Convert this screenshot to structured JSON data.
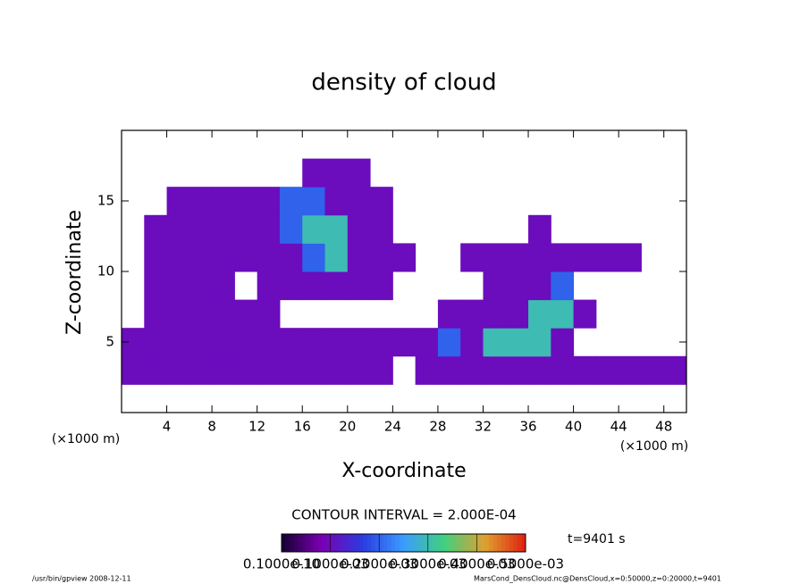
{
  "chart_data": {
    "type": "contour",
    "title": "density of cloud",
    "xlabel": "X-coordinate",
    "ylabel": "Z-coordinate",
    "x_unit": "(×1000 m)",
    "x_unit_right": "(×1000 m)",
    "contour_note": "CONTOUR INTERVAL = 2.000E-04",
    "time_label": "t=9401 s",
    "footer_left": "/usr/bin/gpview  2008-12-11",
    "footer_right": "MarsCond_DensCloud.nc@DensCloud,x=0:50000,z=0:20000,t=9401",
    "xlim": [
      0,
      50
    ],
    "ylim": [
      0,
      20
    ],
    "xticks": [
      4,
      8,
      12,
      16,
      20,
      24,
      28,
      32,
      36,
      40,
      44,
      48
    ],
    "yticks": [
      5,
      10,
      15
    ],
    "x": [
      1,
      3,
      5,
      7,
      9,
      11,
      13,
      15,
      17,
      19,
      21,
      23,
      25,
      27,
      29,
      31,
      33,
      35,
      37,
      39,
      41,
      43,
      45,
      47,
      49
    ],
    "y": [
      3,
      5,
      7,
      9,
      11,
      13,
      15,
      17
    ],
    "values": [
      [
        0.0001,
        0.0001,
        0.0001,
        0.0001,
        0.0001,
        0.0001,
        0.0001,
        0.0001,
        0.0001,
        0.0001,
        0.0001,
        0.0001,
        0,
        0.0001,
        0.0001,
        0.0001,
        0.0001,
        0.0001,
        0.0001,
        0.0001,
        0.0001,
        0.0001,
        0.0001,
        0.0001,
        0.0001
      ],
      [
        0.0001,
        0.0001,
        0.0001,
        0.0001,
        0.0001,
        0.0001,
        0.0001,
        0.0001,
        0.0001,
        0.0001,
        0.0001,
        0.0001,
        0.0001,
        0.0001,
        0.0002,
        0.0001,
        0.0003,
        0.0003,
        0.0003,
        0.0001,
        0,
        0,
        0,
        0,
        0
      ],
      [
        0,
        0.0001,
        0.0001,
        0.0001,
        0.0001,
        0.0001,
        0.0001,
        0,
        0,
        0,
        0,
        0,
        0,
        0,
        0.0001,
        0.0001,
        0.0001,
        0.0001,
        0.0003,
        0.0003,
        0.0001,
        0,
        0,
        0,
        0
      ],
      [
        0,
        0.0001,
        0.0001,
        0.0001,
        0.0001,
        0,
        0.0001,
        0.0001,
        0.0001,
        0.0001,
        0.0001,
        0.0001,
        0,
        0,
        0,
        0,
        0.0001,
        0.0001,
        0.0001,
        0.0002,
        0,
        0,
        0,
        0,
        0
      ],
      [
        0,
        0.0001,
        0.0001,
        0.0001,
        0.0001,
        0.0001,
        0.0001,
        0.0001,
        0.0002,
        0.0003,
        0.0001,
        0.0001,
        0.0001,
        0,
        0,
        0.0001,
        0.0001,
        0.0001,
        0.0001,
        0.0001,
        0.0001,
        0.0001,
        0.0001,
        0,
        0
      ],
      [
        0,
        0.0001,
        0.0001,
        0.0001,
        0.0001,
        0.0001,
        0.0001,
        0.0002,
        0.0003,
        0.0003,
        0.0001,
        0.0001,
        0,
        0,
        0,
        0,
        0,
        0,
        0.0001,
        0,
        0,
        0,
        0,
        0,
        0
      ],
      [
        0,
        0,
        0.0001,
        0.0001,
        0.0001,
        0.0001,
        0.0001,
        0.0002,
        0.0002,
        0.0001,
        0.0001,
        0.0001,
        0,
        0,
        0,
        0,
        0,
        0,
        0,
        0,
        0,
        0,
        0,
        0,
        0
      ],
      [
        0,
        0,
        0,
        0,
        0,
        0,
        0,
        0,
        0.0001,
        0.0001,
        0.0001,
        0,
        0,
        0,
        0,
        0,
        0,
        0,
        0,
        0,
        0,
        0,
        0,
        0,
        0
      ]
    ],
    "clim": [
      0,
      0.0005
    ],
    "colormap": [
      "#140030",
      "#7b00b4",
      "#2a3ce0",
      "#3a9cff",
      "#40d080",
      "#e0a030",
      "#e02010"
    ],
    "colorbar_ticks": [
      {
        "value": 1e-11,
        "label": "0.1000e-10"
      },
      {
        "value": 0.0001,
        "label": "0.1000e-03"
      },
      {
        "value": 0.0002,
        "label": "0.2000e-03"
      },
      {
        "value": 0.0003,
        "label": "0.3000e-03"
      },
      {
        "value": 0.0004,
        "label": "0.4000e-03"
      },
      {
        "value": 0.0005,
        "label": "0.5000e-03"
      }
    ]
  }
}
